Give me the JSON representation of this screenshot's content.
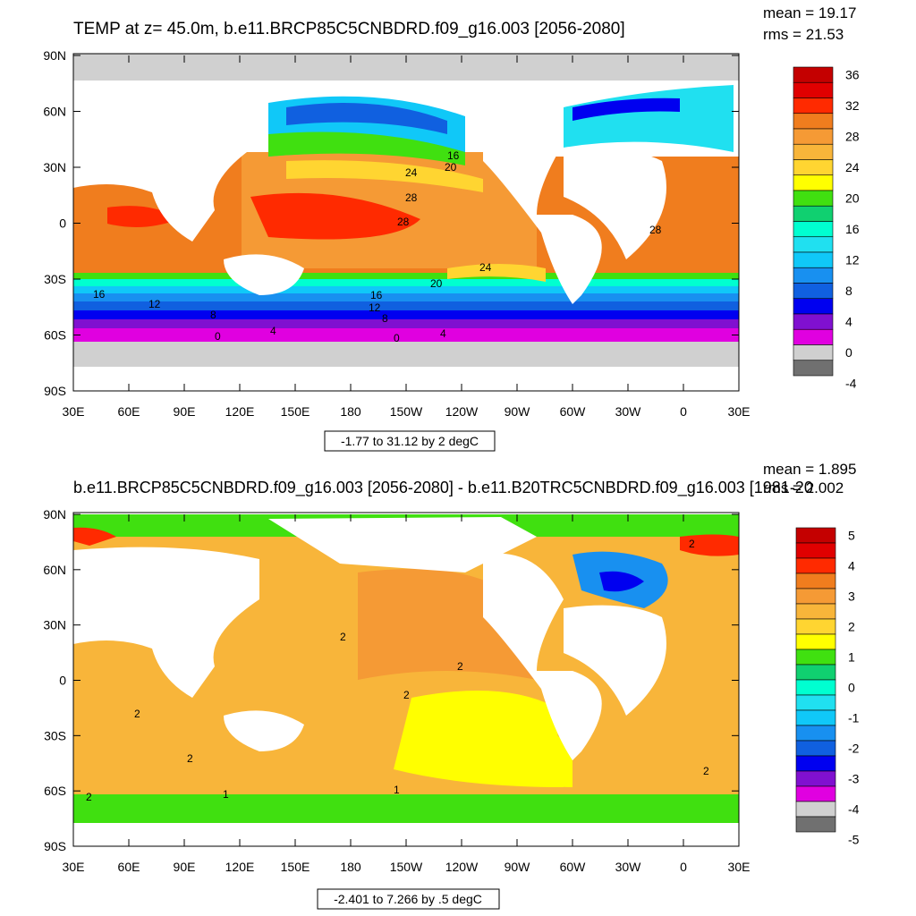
{
  "top": {
    "title": "TEMP at z=  45.0m, b.e11.BRCP85C5CNBDRD.f09_g16.003 [2056-2080]",
    "stats": [
      "mean = 19.17",
      "rms = 21.53"
    ],
    "range_label": "-1.77 to 31.12 by 2 degC",
    "contour_labels": [
      "16",
      "20",
      "24",
      "28",
      "28",
      "28",
      "24",
      "20",
      "16",
      "12",
      "8",
      "0",
      "4",
      "16",
      "12",
      "8",
      "0",
      "4"
    ],
    "colorbar": {
      "labels": [
        "36",
        "32",
        "28",
        "24",
        "20",
        "16",
        "12",
        "8",
        "4",
        "0",
        "-4"
      ],
      "colors": [
        "#c40000",
        "#e00000",
        "#ff2a00",
        "#f07d1e",
        "#f59a35",
        "#f8b53a",
        "#ffd531",
        "#ffff00",
        "#40e010",
        "#10d070",
        "#00ffd0",
        "#20e0f0",
        "#10c8f8",
        "#1890f0",
        "#1060e0",
        "#0000f0",
        "#8010d0",
        "#e000e0",
        "#d0d0d0",
        "#707070"
      ]
    }
  },
  "bottom": {
    "title": "b.e11.BRCP85C5CNBDRD.f09_g16.003 [2056-2080] - b.e11.B20TRC5CNBDRD.f09_g16.003 [1981-20",
    "stats": [
      "mean = 1.895",
      "rms = 2.002"
    ],
    "range_label": "-2.401 to 7.266 by .5 degC",
    "contour_labels": [
      "2",
      "2",
      "2",
      "2",
      "2",
      "2",
      "1",
      "1",
      "2",
      "2"
    ],
    "colorbar": {
      "labels": [
        "5",
        "4",
        "3",
        "2",
        "1",
        "0",
        "-1",
        "-2",
        "-3",
        "-4",
        "-5"
      ],
      "colors": [
        "#c40000",
        "#e00000",
        "#ff2a00",
        "#f07d1e",
        "#f59a35",
        "#f8b53a",
        "#ffd531",
        "#ffff00",
        "#40e010",
        "#10d070",
        "#00ffd0",
        "#20e0f0",
        "#10c8f8",
        "#1890f0",
        "#1060e0",
        "#0000f0",
        "#8010d0",
        "#e000e0",
        "#d0d0d0",
        "#707070"
      ]
    }
  },
  "axes": {
    "lat_labels": [
      "90N",
      "60N",
      "30N",
      "0",
      "30S",
      "60S",
      "90S"
    ],
    "lon_labels": [
      "30E",
      "60E",
      "90E",
      "120E",
      "150E",
      "180",
      "150W",
      "120W",
      "90W",
      "60W",
      "30W",
      "0",
      "30E"
    ]
  }
}
